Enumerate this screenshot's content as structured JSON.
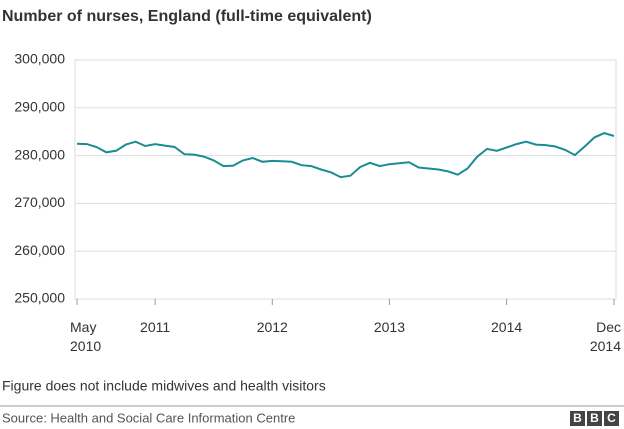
{
  "chart_data": {
    "type": "line",
    "title": "Number of nurses, England (full-time equivalent)",
    "categories": [
      "May\n2010",
      null,
      null,
      null,
      null,
      null,
      null,
      null,
      "2011",
      null,
      null,
      null,
      null,
      null,
      null,
      null,
      null,
      null,
      null,
      null,
      "2012",
      null,
      null,
      null,
      null,
      null,
      null,
      null,
      null,
      null,
      null,
      null,
      "2013",
      null,
      null,
      null,
      null,
      null,
      null,
      null,
      null,
      null,
      null,
      null,
      "2014",
      null,
      null,
      null,
      null,
      null,
      null,
      null,
      null,
      null,
      null,
      "Dec\n2014"
    ],
    "series": [
      {
        "color": "#1b8c92",
        "values": [
          282500,
          282400,
          281800,
          280700,
          281000,
          282300,
          282900,
          282000,
          282400,
          282100,
          281800,
          280300,
          280200,
          279800,
          279000,
          277800,
          277900,
          279000,
          279500,
          278700,
          278900,
          278800,
          278700,
          278000,
          277800,
          277100,
          276500,
          275500,
          275800,
          277600,
          278500,
          277800,
          278200,
          278400,
          278600,
          277500,
          277300,
          277100,
          276700,
          276000,
          277300,
          279800,
          281400,
          281000,
          281700,
          282400,
          282900,
          282300,
          282200,
          281900,
          281200,
          280100,
          281900,
          283800,
          284700,
          284100
        ]
      }
    ],
    "ylim": [
      250000,
      300000
    ],
    "yticks": [
      {
        "value": 250000,
        "label": "250,000"
      },
      {
        "value": 260000,
        "label": "260,000"
      },
      {
        "value": 270000,
        "label": "270,000"
      },
      {
        "value": 280000,
        "label": "280,000"
      },
      {
        "value": 290000,
        "label": "290,000"
      },
      {
        "value": 300000,
        "label": "300,000"
      }
    ],
    "grid": true,
    "note": "Figure does not include midwives and health visitors",
    "source": "Source: Health and Social Care Information Centre",
    "brand": [
      "B",
      "B",
      "C"
    ]
  }
}
